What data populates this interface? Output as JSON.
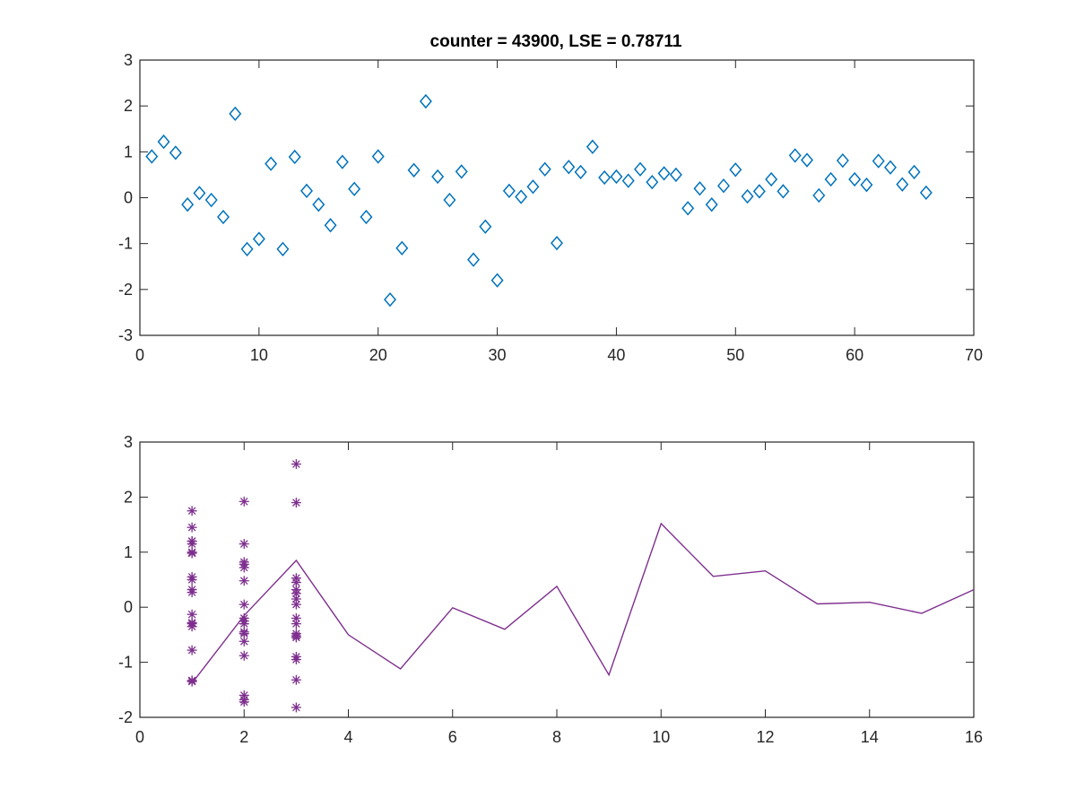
{
  "figure": {
    "background": "#ffffff",
    "axis_color": "#262626"
  },
  "chart_data": [
    {
      "type": "scatter",
      "title": "counter = 43900, LSE = 0.78711",
      "xlabel": "",
      "ylabel": "",
      "xlim": [
        0,
        70
      ],
      "ylim": [
        -3,
        3
      ],
      "xticks": [
        0,
        10,
        20,
        30,
        40,
        50,
        60,
        70
      ],
      "yticks": [
        -3,
        -2,
        -1,
        0,
        1,
        2,
        3
      ],
      "grid": false,
      "series": [
        {
          "marker": "diamond",
          "color": "#0072BD",
          "x": [
            1,
            2,
            3,
            4,
            5,
            6,
            7,
            8,
            9,
            10,
            11,
            12,
            13,
            14,
            15,
            16,
            17,
            18,
            19,
            20,
            21,
            22,
            23,
            24,
            25,
            26,
            27,
            28,
            29,
            30,
            31,
            32,
            33,
            34,
            35,
            36,
            37,
            38,
            39,
            40,
            41,
            42,
            43,
            44,
            45,
            46,
            47,
            48,
            49,
            50,
            51,
            52,
            53,
            54,
            55,
            56,
            57,
            58,
            59,
            60,
            61,
            62,
            63,
            64,
            65,
            66
          ],
          "y": [
            0.9,
            1.22,
            0.98,
            -0.15,
            0.1,
            -0.05,
            -0.42,
            1.83,
            -1.12,
            -0.9,
            0.74,
            -1.12,
            0.89,
            0.15,
            -0.15,
            -0.6,
            0.78,
            0.19,
            -0.42,
            0.9,
            -2.22,
            -1.1,
            0.6,
            2.1,
            0.46,
            -0.05,
            0.57,
            -1.35,
            -0.63,
            -1.8,
            0.15,
            0.02,
            0.24,
            0.62,
            -0.99,
            0.67,
            0.56,
            1.11,
            0.44,
            0.46,
            0.37,
            0.62,
            0.34,
            0.53,
            0.5,
            -0.23,
            0.2,
            -0.15,
            0.26,
            0.61,
            0.03,
            0.14,
            0.4,
            0.14,
            0.92,
            0.82,
            0.05,
            0.4,
            0.81,
            0.4,
            0.28,
            0.8,
            0.66,
            0.29,
            0.56,
            0.11
          ]
        }
      ]
    },
    {
      "type": "line",
      "title": "",
      "xlabel": "",
      "ylabel": "",
      "xlim": [
        0,
        16
      ],
      "ylim": [
        -2,
        3
      ],
      "xticks": [
        0,
        2,
        4,
        6,
        8,
        10,
        12,
        14,
        16
      ],
      "yticks": [
        -2,
        -1,
        0,
        1,
        2,
        3
      ],
      "grid": false,
      "series": [
        {
          "kind": "scatter",
          "marker": "asterisk",
          "color": "#7E2F8E",
          "x": [
            1,
            1,
            1,
            1,
            1,
            1,
            1,
            1,
            1,
            1,
            1,
            1,
            1,
            1,
            1,
            1,
            1,
            1,
            2,
            2,
            2,
            2,
            2,
            2,
            2,
            2,
            2,
            2,
            2,
            2,
            2,
            2,
            2,
            2,
            2,
            3,
            3,
            3,
            3,
            3,
            3,
            3,
            3,
            3,
            3,
            3,
            3,
            3,
            3,
            3,
            3,
            3
          ],
          "y": [
            1.75,
            1.45,
            1.2,
            1.15,
            1.0,
            0.55,
            0.5,
            0.32,
            0.27,
            -0.13,
            -0.28,
            -0.3,
            -0.35,
            -0.78,
            -1.33,
            -1.35,
            1.2,
            0.98,
            1.92,
            1.15,
            0.82,
            0.78,
            0.72,
            0.48,
            0.05,
            -0.2,
            -0.25,
            -0.3,
            -0.45,
            -0.48,
            -0.62,
            -0.88,
            -1.6,
            -1.68,
            -1.72,
            2.6,
            1.9,
            0.53,
            0.45,
            0.32,
            0.25,
            0.15,
            0.05,
            -0.2,
            -0.3,
            -0.48,
            -0.52,
            -0.55,
            -0.9,
            -0.95,
            -1.32,
            -1.82
          ]
        },
        {
          "kind": "line",
          "color": "#7E2F8E",
          "x": [
            1,
            2,
            3,
            4,
            5,
            6,
            7,
            8,
            9,
            10,
            11,
            12,
            13,
            14,
            15,
            16
          ],
          "y": [
            -1.38,
            -0.15,
            0.85,
            -0.5,
            -1.12,
            -0.01,
            -0.4,
            0.38,
            -1.23,
            1.52,
            0.56,
            0.66,
            0.06,
            0.09,
            -0.11,
            0.32
          ]
        }
      ]
    }
  ]
}
